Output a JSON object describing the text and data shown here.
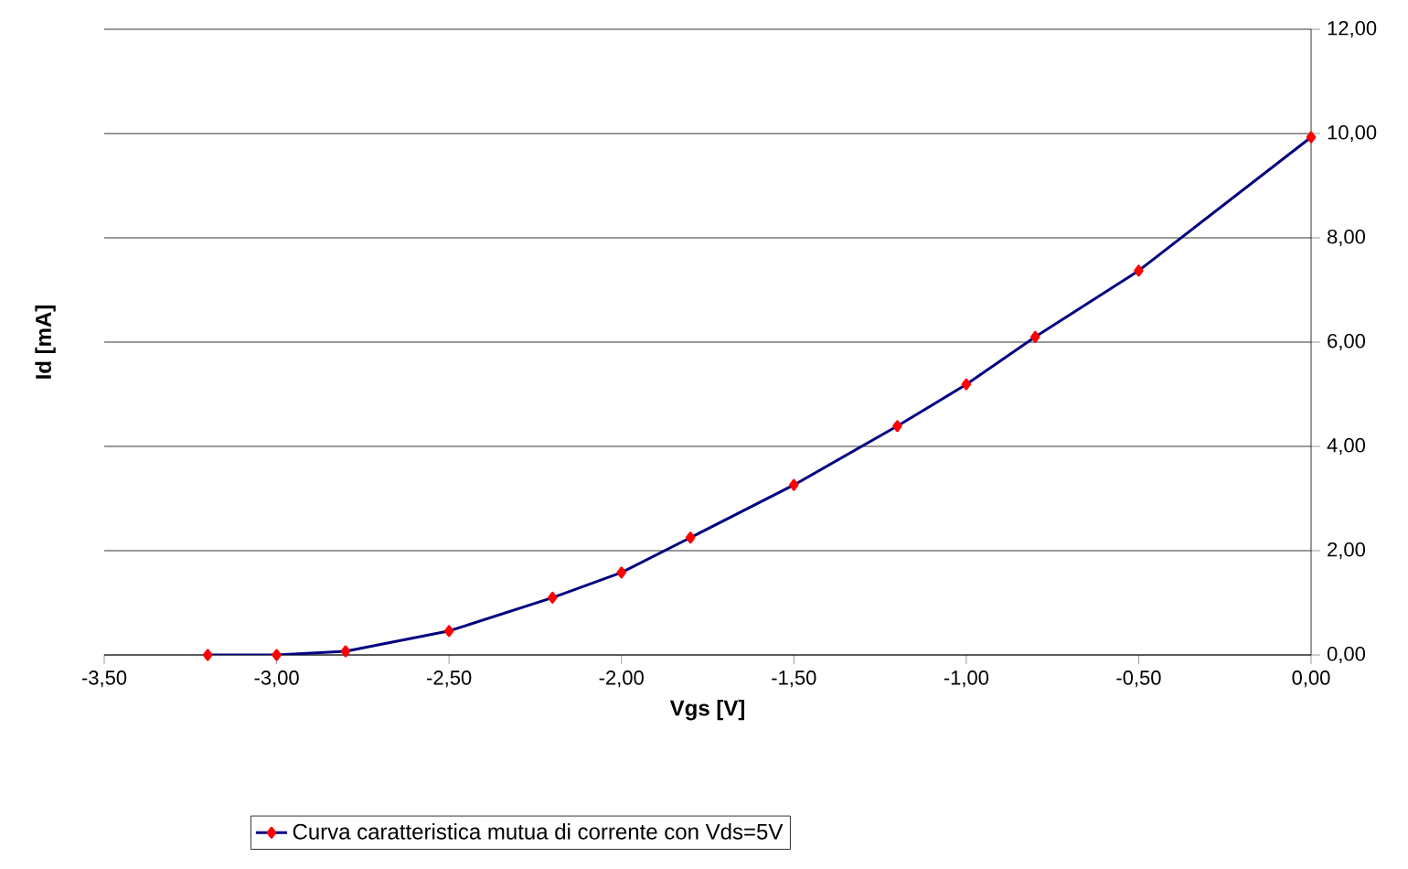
{
  "chart_data": {
    "type": "line",
    "xlabel": "Vgs [V]",
    "ylabel": "Id [mA]",
    "x": [
      -3.2,
      -3.0,
      -2.8,
      -2.5,
      -2.2,
      -2.0,
      -1.8,
      -1.5,
      -1.2,
      -1.0,
      -0.8,
      -0.5,
      0.0
    ],
    "series": [
      {
        "name": "Curva caratteristica mutua di corrente con Vds=5V",
        "color": "#000080",
        "values": [
          0.0,
          0.0,
          0.07,
          0.46,
          1.1,
          1.58,
          2.25,
          3.26,
          4.39,
          5.19,
          6.1,
          7.37,
          9.93
        ]
      }
    ],
    "xlim": [
      -3.5,
      0.0
    ],
    "xticks": [
      {
        "value": -3.5,
        "label": "-3,50"
      },
      {
        "value": -3.0,
        "label": "-3,00"
      },
      {
        "value": -2.5,
        "label": "-2,50"
      },
      {
        "value": -2.0,
        "label": "-2,00"
      },
      {
        "value": -1.5,
        "label": "-1,50"
      },
      {
        "value": -1.0,
        "label": "-1,00"
      },
      {
        "value": -0.5,
        "label": "-0,50"
      },
      {
        "value": 0.0,
        "label": "0,00"
      }
    ],
    "ylim": [
      0,
      12
    ],
    "yticks": [
      {
        "value": 0,
        "label": "0,00"
      },
      {
        "value": 2,
        "label": "2,00"
      },
      {
        "value": 4,
        "label": "4,00"
      },
      {
        "value": 6,
        "label": "6,00"
      },
      {
        "value": 8,
        "label": "8,00"
      },
      {
        "value": 10,
        "label": "10,00"
      },
      {
        "value": 12,
        "label": "12,00"
      }
    ],
    "grid": "y",
    "legend": "bottom",
    "marker": "diamond",
    "line_style": "solid"
  }
}
